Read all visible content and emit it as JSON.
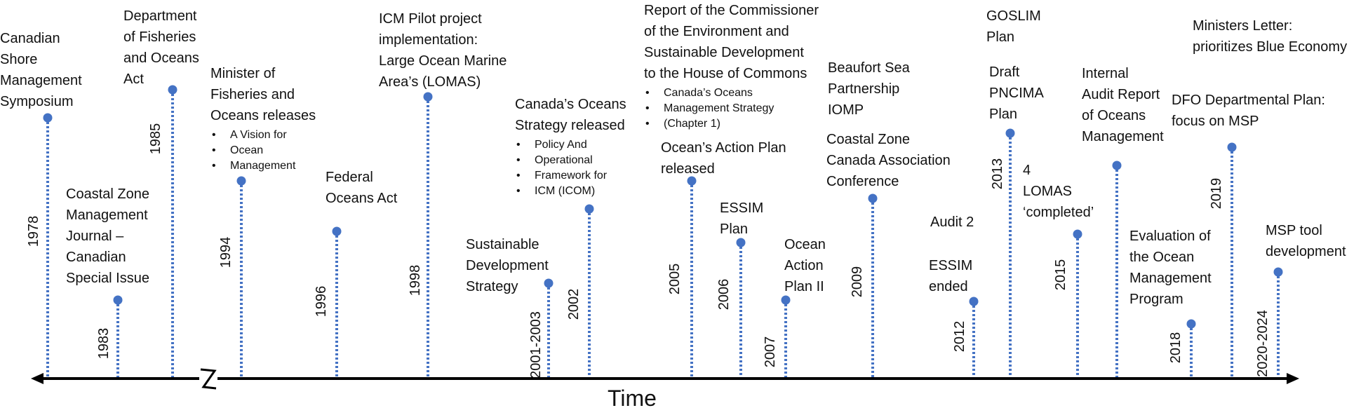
{
  "axis": {
    "title": "Time"
  },
  "events": [
    {
      "year": "1978",
      "label": [
        "Canadian",
        "Shore",
        "Management",
        "Symposium"
      ],
      "sub": []
    },
    {
      "year": "1983",
      "label": [
        "Coastal Zone",
        "Management",
        "Journal –",
        "Canadian",
        "Special Issue"
      ],
      "sub": []
    },
    {
      "year": "1985",
      "label": [
        "Department",
        "of Fisheries",
        "and Oceans",
        "Act"
      ],
      "sub": []
    },
    {
      "year": "1994",
      "label": [
        "Minister of",
        "Fisheries and",
        "Oceans releases"
      ],
      "sub": [
        "A Vision for",
        "Ocean",
        "Management"
      ]
    },
    {
      "year": "1996",
      "label": [
        "Federal",
        "Oceans Act"
      ],
      "sub": []
    },
    {
      "year": "1998",
      "label": [
        "ICM Pilot project",
        "implementation:",
        "Large Ocean Marine",
        "Area’s (LOMAS)"
      ],
      "sub": []
    },
    {
      "year": "2001-2003",
      "label": [
        "Sustainable",
        "Development",
        "Strategy"
      ],
      "sub": []
    },
    {
      "year": "2002",
      "label": [
        "Canada’s Oceans",
        "Strategy released"
      ],
      "sub": [
        "Policy And",
        "Operational",
        "Framework for",
        "ICM (ICOM)"
      ]
    },
    {
      "year": "2005",
      "label": [
        "Ocean’s Action Plan",
        "released"
      ],
      "sub": []
    },
    {
      "year": "2006",
      "label": [
        "ESSIM",
        "Plan"
      ],
      "sub": []
    },
    {
      "year": "2007",
      "label": [
        "Ocean",
        "Action",
        "Plan II"
      ],
      "sub": []
    },
    {
      "year": "2009",
      "label": [
        "Coastal Zone",
        "Canada Association",
        "Conference"
      ],
      "sub": []
    },
    {
      "year": "2012",
      "label": [
        "ESSIM",
        "ended"
      ],
      "sub": []
    },
    {
      "year": "2013",
      "label": [
        "Draft",
        "PNCIMA",
        "Plan"
      ],
      "sub": []
    },
    {
      "year": "2015",
      "label": [
        "4",
        "LOMAS",
        "‘completed’"
      ],
      "sub": []
    },
    {
      "year": "",
      "label": [
        "Internal",
        "Audit Report",
        "of Oceans",
        "Management"
      ],
      "sub": []
    },
    {
      "year": "2018",
      "label": [
        "Evaluation of",
        "the Ocean",
        "Management",
        "Program"
      ],
      "sub": []
    },
    {
      "year": "2019",
      "label": [
        "DFO Departmental Plan:",
        "focus on MSP"
      ],
      "sub": []
    },
    {
      "year": "2020-2024",
      "label": [
        "MSP tool",
        "development"
      ],
      "sub": []
    }
  ],
  "notes": [
    {
      "label": [
        "Report of the Commissioner",
        "of the Environment and",
        "Sustainable Development",
        " to the House of Commons"
      ],
      "sub": [
        "Canada’s Oceans",
        "Management Strategy",
        "(Chapter 1)"
      ]
    },
    {
      "label": [
        "Beaufort Sea",
        "Partnership",
        "IOMP"
      ],
      "sub": []
    },
    {
      "label": [
        "Audit 2"
      ],
      "sub": []
    },
    {
      "label": [
        "GOSLIM",
        "Plan"
      ],
      "sub": []
    },
    {
      "label": [
        "Ministers Letter:",
        "prioritizes Blue Economy"
      ],
      "sub": []
    }
  ],
  "colors": {
    "marker": "#4472c4",
    "axis": "#000000",
    "text": "#111111"
  }
}
